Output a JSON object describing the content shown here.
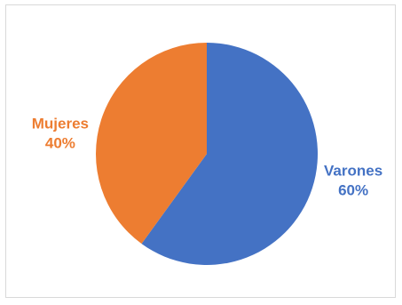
{
  "chart_data": {
    "type": "pie",
    "title": "",
    "slices": [
      {
        "label": "Varones",
        "value": 60,
        "value_label": "60%",
        "color": "#4472C4"
      },
      {
        "label": "Mujeres",
        "value": 40,
        "value_label": "40%",
        "color": "#ED7D31"
      }
    ],
    "legend": "none",
    "start_angle": "12 o'clock",
    "direction": "clockwise"
  }
}
